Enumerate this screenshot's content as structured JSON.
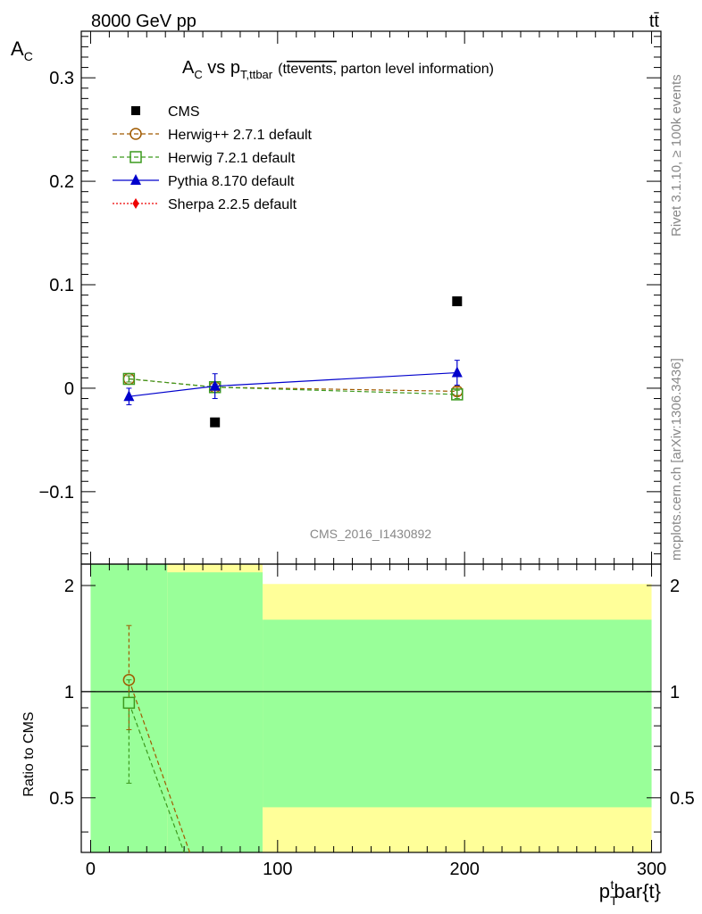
{
  "header": {
    "energy_label": "8000 GeV pp",
    "process_label": "tt̄"
  },
  "side_labels": {
    "rivet": "Rivet 3.1.10, ≥ 100k events",
    "mcplots": "mcplots.cern.ch [arXiv:1306.3436]"
  },
  "colors": {
    "cms": "#000000",
    "herwigpp": "#a05a00",
    "herwig7": "#3c9a1e",
    "pythia": "#0000cc",
    "sherpa": "#ee0000",
    "band_inner": "#99ff99",
    "band_outer": "#ffff99",
    "watermark": "#888888"
  },
  "chart_data": {
    "type": "scatter",
    "title": {
      "main": "A",
      "main_sub": "C",
      "vs": " vs p",
      "vs_sub": "T,ttbar",
      "tt": "(t",
      "overlined": "tevents,",
      "rest": " parton level information)"
    },
    "ylabel": {
      "main": "A",
      "sub": "C"
    },
    "xlabel": {
      "main": "p",
      "sub": "T",
      "sup": "t",
      "rest": "bar{t}"
    },
    "analysis_id": "CMS_2016_I1430892",
    "ylim": [
      -0.17,
      0.345
    ],
    "xlim": [
      -5,
      305
    ],
    "x_ticks": [
      0,
      100,
      200,
      300
    ],
    "x_tick_labels": [
      "0",
      "100",
      "200",
      "300"
    ],
    "y_ticks": [
      -0.1,
      0,
      0.1,
      0.2,
      0.3
    ],
    "y_tick_labels": [
      "−0.1",
      "0",
      "0.1",
      "0.2",
      "0.3"
    ],
    "bin_edges": [
      0,
      41,
      92,
      300
    ],
    "cms": {
      "name": "CMS",
      "x": [
        20.5,
        66.5,
        196
      ],
      "y": [
        null,
        -0.033,
        0.084
      ]
    },
    "series": [
      {
        "key": "herwigpp",
        "name": "Herwig++ 2.7.1 default",
        "marker": "circle",
        "dash": "5,3",
        "x": [
          20.5,
          66.5,
          196
        ],
        "y": [
          0.009,
          0.001,
          -0.003
        ],
        "yerr": [
          0.003,
          0.003,
          0.004
        ]
      },
      {
        "key": "herwig7",
        "name": "Herwig 7.2.1 default",
        "marker": "square",
        "dash": "5,3",
        "x": [
          20.5,
          66.5,
          196
        ],
        "y": [
          0.009,
          0.001,
          -0.006
        ],
        "yerr": [
          0.003,
          0.003,
          0.004
        ]
      },
      {
        "key": "pythia",
        "name": "Pythia 8.170 default",
        "marker": "triangle",
        "dash": "",
        "x": [
          20.5,
          66.5,
          196
        ],
        "y": [
          -0.008,
          0.002,
          0.015
        ],
        "yerr": [
          0.008,
          0.012,
          0.012
        ]
      },
      {
        "key": "sherpa",
        "name": "Sherpa 2.2.5 default",
        "marker": "diamond",
        "dash": "2,2",
        "x": [],
        "y": [],
        "yerr": []
      }
    ],
    "ratio": {
      "ylabel": "Ratio to CMS",
      "ylim": [
        0.35,
        2.3
      ],
      "ticks": [
        0.5,
        1,
        2
      ],
      "tick_labels": [
        "0.5",
        "1",
        "2"
      ],
      "bands": [
        {
          "x0": 0,
          "x1": 41,
          "inner": [
            0.0,
            9.0
          ],
          "outer": [
            0.0,
            9.0
          ]
        },
        {
          "x0": 41,
          "x1": 92,
          "inner": [
            0.0,
            2.18
          ],
          "outer": [
            0.0,
            9.0
          ]
        },
        {
          "x0": 92,
          "x1": 300,
          "inner": [
            0.47,
            1.6
          ],
          "outer": [
            0.0,
            2.02
          ]
        }
      ],
      "series": [
        {
          "key": "herwigpp",
          "x": [
            20.5
          ],
          "y": [
            1.08
          ],
          "ylo": [
            0.78
          ],
          "yhi": [
            1.54
          ],
          "line_to": [
            53,
            0.35
          ]
        },
        {
          "key": "herwig7",
          "x": [
            20.5
          ],
          "y": [
            0.93
          ],
          "ylo": [
            0.55
          ],
          "yhi": [
            1.08
          ],
          "line_to": [
            50,
            0.35
          ]
        }
      ]
    }
  }
}
